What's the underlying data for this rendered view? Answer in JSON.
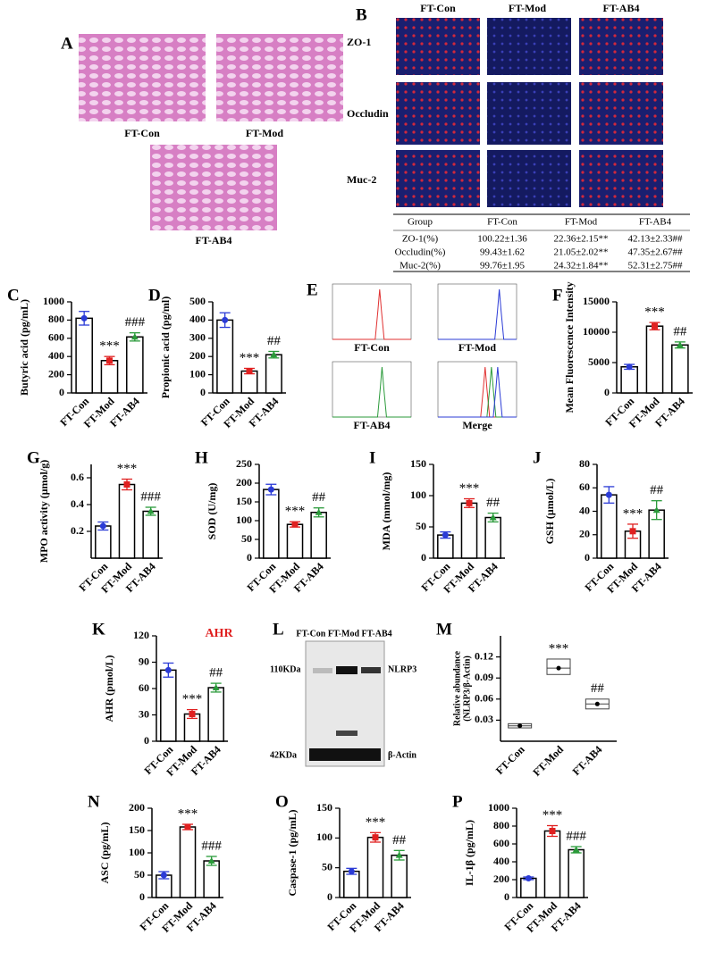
{
  "figure": {
    "panel_a": {
      "label": "A",
      "images": [
        "FT-Con",
        "FT-Mod",
        "FT-AB4"
      ]
    },
    "panel_b": {
      "label": "B",
      "columns": [
        "FT-Con",
        "FT-Mod",
        "FT-AB4"
      ],
      "rows": [
        "ZO-1",
        "Occludin",
        "Muc-2"
      ],
      "table": {
        "header": [
          "Group",
          "FT-Con",
          "FT-Mod",
          "FT-AB4"
        ],
        "rows": [
          [
            "ZO-1(%)",
            "100.22±1.36",
            "22.36±2.15**",
            "42.13±2.33##"
          ],
          [
            "Occludin(%)",
            "99.43±1.62",
            "21.05±2.02**",
            "47.35±2.67##"
          ],
          [
            "Muc-2(%)",
            "99.76±1.95",
            "24.32±1.84**",
            "52.31±2.75##"
          ]
        ]
      }
    },
    "panel_e": {
      "label": "E",
      "plots": [
        "FT-Con",
        "FT-Mod",
        "FT-AB4",
        "Merge"
      ]
    },
    "panel_l": {
      "label": "L",
      "lanes": "FT-Con FT-Mod FT-AB4",
      "bands": [
        {
          "size": "110KDa",
          "name": "NLRP3"
        },
        {
          "size": "42KDa",
          "name": "β-Actin"
        }
      ]
    }
  },
  "chart_data": [
    {
      "type": "bar",
      "panel": "C",
      "ylabel": "Butyric acid (pg/mL)",
      "categories": [
        "FT-Con",
        "FT-Mod",
        "FT-AB4"
      ],
      "values": [
        820,
        355,
        615
      ],
      "errors": [
        75,
        45,
        45
      ],
      "colors": [
        "#2b3bd6",
        "#e02020",
        "#2a9a3a"
      ],
      "significance": [
        null,
        "***",
        "###"
      ],
      "ylim": [
        0,
        1000
      ],
      "yticks": [
        0,
        200,
        400,
        600,
        800,
        1000
      ]
    },
    {
      "type": "bar",
      "panel": "D",
      "ylabel": "Propionic acid (pg/ml)",
      "categories": [
        "FT-Con",
        "FT-Mod",
        "FT-AB4"
      ],
      "values": [
        400,
        120,
        210
      ],
      "errors": [
        40,
        15,
        18
      ],
      "colors": [
        "#2b3bd6",
        "#e02020",
        "#2a9a3a"
      ],
      "significance": [
        null,
        "***",
        "##"
      ],
      "ylim": [
        0,
        500
      ],
      "yticks": [
        0,
        100,
        200,
        300,
        400,
        500
      ]
    },
    {
      "type": "bar",
      "panel": "F",
      "ylabel": "Mean Fluorescence Intensity",
      "categories": [
        "FT-Con",
        "FT-Mod",
        "FT-AB4"
      ],
      "values": [
        4300,
        11000,
        7900
      ],
      "errors": [
        400,
        600,
        500
      ],
      "colors": [
        "#2b3bd6",
        "#e02020",
        "#2a9a3a"
      ],
      "significance": [
        null,
        "***",
        "##"
      ],
      "ylim": [
        0,
        15000
      ],
      "yticks": [
        0,
        5000,
        10000,
        15000
      ]
    },
    {
      "type": "bar",
      "panel": "G",
      "ylabel": "MPO activity (μmol/g)",
      "categories": [
        "FT-Con",
        "FT-Mod",
        "FT-AB4"
      ],
      "values": [
        0.24,
        0.55,
        0.35
      ],
      "errors": [
        0.03,
        0.04,
        0.03
      ],
      "colors": [
        "#2b3bd6",
        "#e02020",
        "#2a9a3a"
      ],
      "significance": [
        null,
        "***",
        "###"
      ],
      "ylim": [
        0,
        0.7
      ],
      "yticks": [
        0.2,
        0.4,
        0.6
      ]
    },
    {
      "type": "bar",
      "panel": "H",
      "ylabel": "SOD (U/mg)",
      "categories": [
        "FT-Con",
        "FT-Mod",
        "FT-AB4"
      ],
      "values": [
        183,
        90,
        122
      ],
      "errors": [
        14,
        7,
        12
      ],
      "colors": [
        "#2b3bd6",
        "#e02020",
        "#2a9a3a"
      ],
      "significance": [
        null,
        "***",
        "##"
      ],
      "ylim": [
        0,
        250
      ],
      "yticks": [
        0,
        50,
        100,
        150,
        200,
        250
      ]
    },
    {
      "type": "bar",
      "panel": "I",
      "ylabel": "MDA (mmol/mg)",
      "categories": [
        "FT-Con",
        "FT-Mod",
        "FT-AB4"
      ],
      "values": [
        37,
        88,
        65
      ],
      "errors": [
        5,
        7,
        7
      ],
      "colors": [
        "#2b3bd6",
        "#e02020",
        "#2a9a3a"
      ],
      "significance": [
        null,
        "***",
        "##"
      ],
      "ylim": [
        0,
        150
      ],
      "yticks": [
        0,
        50,
        100,
        150
      ]
    },
    {
      "type": "bar",
      "panel": "J",
      "ylabel": "GSH (μmol/L)",
      "categories": [
        "FT-Con",
        "FT-Mod",
        "FT-AB4"
      ],
      "values": [
        54,
        23,
        41
      ],
      "errors": [
        7,
        6,
        8
      ],
      "colors": [
        "#2b3bd6",
        "#e02020",
        "#2a9a3a"
      ],
      "significance": [
        null,
        "***",
        "##"
      ],
      "ylim": [
        0,
        80
      ],
      "yticks": [
        0,
        20,
        40,
        60,
        80
      ]
    },
    {
      "type": "bar",
      "panel": "K",
      "ylabel": "AHR (pmol/L)",
      "annotation": "AHR",
      "annotation_color": "#e02020",
      "categories": [
        "FT-Con",
        "FT-Mod",
        "FT-AB4"
      ],
      "values": [
        81,
        31,
        61
      ],
      "errors": [
        8,
        5,
        5
      ],
      "colors": [
        "#2b3bd6",
        "#e02020",
        "#2a9a3a"
      ],
      "significance": [
        null,
        "***",
        "##"
      ],
      "ylim": [
        0,
        120
      ],
      "yticks": [
        0,
        30,
        60,
        90,
        120
      ]
    },
    {
      "type": "box",
      "panel": "M",
      "ylabel": [
        "Relative abundance",
        "(NLRP3/β-Actin)"
      ],
      "categories": [
        "FT-Con",
        "FT-Mod",
        "FT-AB4"
      ],
      "values": [
        0.022,
        0.104,
        0.053
      ],
      "box_low": [
        0.019,
        0.095,
        0.046
      ],
      "box_high": [
        0.025,
        0.117,
        0.06
      ],
      "colors": [
        "#000000",
        "#000000",
        "#000000"
      ],
      "significance": [
        null,
        "***",
        "##"
      ],
      "ylim": [
        0,
        0.15
      ],
      "yticks": [
        0.03,
        0.06,
        0.09,
        0.12
      ]
    },
    {
      "type": "bar",
      "panel": "N",
      "ylabel": "ASC (pg/mL)",
      "categories": [
        "FT-Con",
        "FT-Mod",
        "FT-AB4"
      ],
      "values": [
        50,
        158,
        82
      ],
      "errors": [
        8,
        6,
        10
      ],
      "colors": [
        "#2b3bd6",
        "#e02020",
        "#2a9a3a"
      ],
      "significance": [
        null,
        "***",
        "###"
      ],
      "ylim": [
        0,
        200
      ],
      "yticks": [
        0,
        50,
        100,
        150,
        200
      ]
    },
    {
      "type": "bar",
      "panel": "O",
      "ylabel": "Caspase-1 (pg/mL)",
      "categories": [
        "FT-Con",
        "FT-Mod",
        "FT-AB4"
      ],
      "values": [
        44,
        101,
        71
      ],
      "errors": [
        5,
        8,
        8
      ],
      "colors": [
        "#2b3bd6",
        "#e02020",
        "#2a9a3a"
      ],
      "significance": [
        null,
        "***",
        "##"
      ],
      "ylim": [
        0,
        150
      ],
      "yticks": [
        0,
        50,
        100,
        150
      ]
    },
    {
      "type": "bar",
      "panel": "P",
      "ylabel": "IL-1β (pg/mL)",
      "categories": [
        "FT-Con",
        "FT-Mod",
        "FT-AB4"
      ],
      "values": [
        215,
        745,
        535
      ],
      "errors": [
        15,
        60,
        35
      ],
      "colors": [
        "#2b3bd6",
        "#e02020",
        "#2a9a3a"
      ],
      "significance": [
        null,
        "***",
        "###"
      ],
      "ylim": [
        0,
        1000
      ],
      "yticks": [
        0,
        200,
        400,
        600,
        800,
        1000
      ]
    }
  ]
}
